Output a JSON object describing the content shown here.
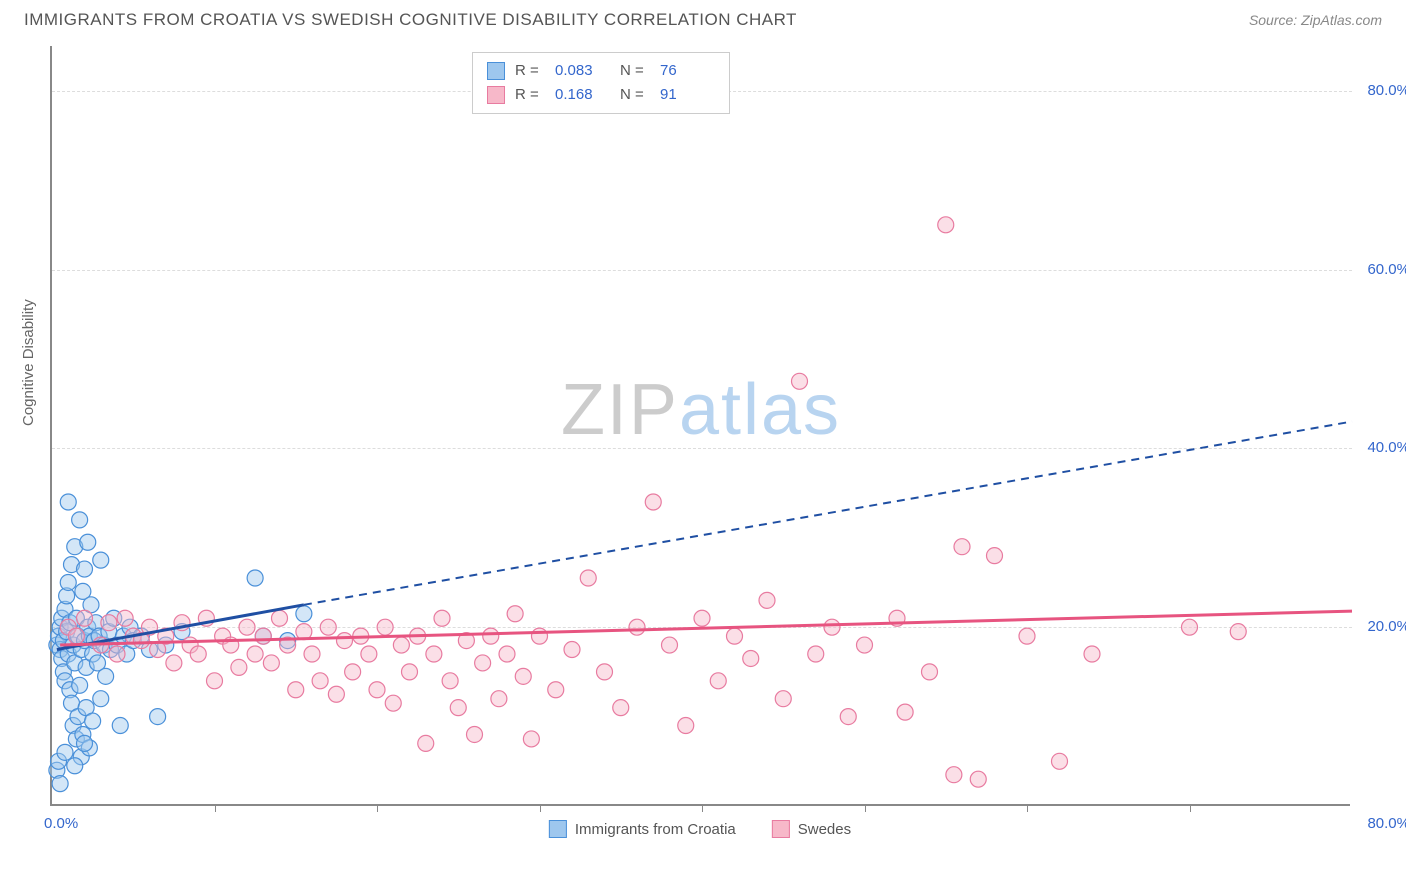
{
  "title": "IMMIGRANTS FROM CROATIA VS SWEDISH COGNITIVE DISABILITY CORRELATION CHART",
  "source": "Source: ZipAtlas.com",
  "ylabel": "Cognitive Disability",
  "watermark_a": "ZIP",
  "watermark_b": "atlas",
  "chart": {
    "type": "scatter",
    "xlim": [
      0,
      80
    ],
    "ylim": [
      0,
      85
    ],
    "x_tick_step": 10,
    "y_ticks": [
      20,
      40,
      60,
      80
    ],
    "x_label_min": "0.0%",
    "x_label_max": "80.0%",
    "y_labels": [
      "20.0%",
      "40.0%",
      "60.0%",
      "80.0%"
    ],
    "background_color": "#ffffff",
    "grid_color": "#dddddd",
    "axis_color": "#888888",
    "tick_label_color": "#3366cc",
    "marker_radius": 8,
    "series": [
      {
        "name": "Immigrants from Croatia",
        "fill": "#9ec7ee",
        "stroke": "#4a90d9",
        "r_value": "0.083",
        "n_value": "76",
        "trend_color": "#1f4fa3",
        "trend_solid": [
          [
            0.3,
            17.5
          ],
          [
            15.5,
            22.5
          ]
        ],
        "trend_dash": [
          [
            15.5,
            22.5
          ],
          [
            80,
            43
          ]
        ],
        "points": [
          [
            0.3,
            18.0
          ],
          [
            0.4,
            19.0
          ],
          [
            0.5,
            17.5
          ],
          [
            0.5,
            20.0
          ],
          [
            0.6,
            16.5
          ],
          [
            0.6,
            21.0
          ],
          [
            0.7,
            18.5
          ],
          [
            0.7,
            15.0
          ],
          [
            0.8,
            22.0
          ],
          [
            0.8,
            14.0
          ],
          [
            0.9,
            19.5
          ],
          [
            0.9,
            23.5
          ],
          [
            1.0,
            17.0
          ],
          [
            1.0,
            25.0
          ],
          [
            1.1,
            13.0
          ],
          [
            1.1,
            20.5
          ],
          [
            1.2,
            27.0
          ],
          [
            1.2,
            11.5
          ],
          [
            1.3,
            18.0
          ],
          [
            1.3,
            9.0
          ],
          [
            1.4,
            29.0
          ],
          [
            1.4,
            16.0
          ],
          [
            1.5,
            7.5
          ],
          [
            1.5,
            21.0
          ],
          [
            1.6,
            10.0
          ],
          [
            1.6,
            19.0
          ],
          [
            1.7,
            32.0
          ],
          [
            1.7,
            13.5
          ],
          [
            1.8,
            5.5
          ],
          [
            1.8,
            17.5
          ],
          [
            1.9,
            8.0
          ],
          [
            1.9,
            24.0
          ],
          [
            2.0,
            18.5
          ],
          [
            2.0,
            26.5
          ],
          [
            2.1,
            15.5
          ],
          [
            2.1,
            11.0
          ],
          [
            2.2,
            20.0
          ],
          [
            2.3,
            6.5
          ],
          [
            2.3,
            19.0
          ],
          [
            2.4,
            22.5
          ],
          [
            2.5,
            17.0
          ],
          [
            2.5,
            9.5
          ],
          [
            2.6,
            18.5
          ],
          [
            2.7,
            20.5
          ],
          [
            2.8,
            16.0
          ],
          [
            2.9,
            19.0
          ],
          [
            3.0,
            27.5
          ],
          [
            3.0,
            12.0
          ],
          [
            3.2,
            18.0
          ],
          [
            3.3,
            14.5
          ],
          [
            3.5,
            19.5
          ],
          [
            3.6,
            17.5
          ],
          [
            3.8,
            21.0
          ],
          [
            4.0,
            18.0
          ],
          [
            4.2,
            9.0
          ],
          [
            4.4,
            19.0
          ],
          [
            4.6,
            17.0
          ],
          [
            4.8,
            20.0
          ],
          [
            5.0,
            18.5
          ],
          [
            5.5,
            19.0
          ],
          [
            6.0,
            17.5
          ],
          [
            6.5,
            10.0
          ],
          [
            7.0,
            18.0
          ],
          [
            8.0,
            19.5
          ],
          [
            1.0,
            34.0
          ],
          [
            2.2,
            29.5
          ],
          [
            0.3,
            4.0
          ],
          [
            0.4,
            5.0
          ],
          [
            0.8,
            6.0
          ],
          [
            0.5,
            2.5
          ],
          [
            1.4,
            4.5
          ],
          [
            2.0,
            7.0
          ],
          [
            12.5,
            25.5
          ],
          [
            13.0,
            19.0
          ],
          [
            14.5,
            18.5
          ],
          [
            15.5,
            21.5
          ]
        ]
      },
      {
        "name": "Swedes",
        "fill": "#f7b8c9",
        "stroke": "#e87ba0",
        "r_value": "0.168",
        "n_value": "91",
        "trend_color": "#e75480",
        "trend_solid": [
          [
            0.5,
            18.0
          ],
          [
            80,
            21.8
          ]
        ],
        "trend_dash": null,
        "points": [
          [
            1.0,
            20.0
          ],
          [
            1.5,
            19.0
          ],
          [
            2.0,
            21.0
          ],
          [
            3.0,
            18.0
          ],
          [
            3.5,
            20.5
          ],
          [
            4.0,
            17.0
          ],
          [
            4.5,
            21.0
          ],
          [
            5.0,
            19.0
          ],
          [
            5.5,
            18.5
          ],
          [
            6.0,
            20.0
          ],
          [
            6.5,
            17.5
          ],
          [
            7.0,
            19.0
          ],
          [
            7.5,
            16.0
          ],
          [
            8.0,
            20.5
          ],
          [
            8.5,
            18.0
          ],
          [
            9.0,
            17.0
          ],
          [
            9.5,
            21.0
          ],
          [
            10.0,
            14.0
          ],
          [
            10.5,
            19.0
          ],
          [
            11.0,
            18.0
          ],
          [
            11.5,
            15.5
          ],
          [
            12.0,
            20.0
          ],
          [
            12.5,
            17.0
          ],
          [
            13.0,
            19.0
          ],
          [
            13.5,
            16.0
          ],
          [
            14.0,
            21.0
          ],
          [
            14.5,
            18.0
          ],
          [
            15.0,
            13.0
          ],
          [
            15.5,
            19.5
          ],
          [
            16.0,
            17.0
          ],
          [
            16.5,
            14.0
          ],
          [
            17.0,
            20.0
          ],
          [
            17.5,
            12.5
          ],
          [
            18.0,
            18.5
          ],
          [
            18.5,
            15.0
          ],
          [
            19.0,
            19.0
          ],
          [
            19.5,
            17.0
          ],
          [
            20.0,
            13.0
          ],
          [
            20.5,
            20.0
          ],
          [
            21.0,
            11.5
          ],
          [
            21.5,
            18.0
          ],
          [
            22.0,
            15.0
          ],
          [
            22.5,
            19.0
          ],
          [
            23.0,
            7.0
          ],
          [
            23.5,
            17.0
          ],
          [
            24.0,
            21.0
          ],
          [
            24.5,
            14.0
          ],
          [
            25.0,
            11.0
          ],
          [
            25.5,
            18.5
          ],
          [
            26.0,
            8.0
          ],
          [
            26.5,
            16.0
          ],
          [
            27.0,
            19.0
          ],
          [
            27.5,
            12.0
          ],
          [
            28.0,
            17.0
          ],
          [
            28.5,
            21.5
          ],
          [
            29.0,
            14.5
          ],
          [
            29.5,
            7.5
          ],
          [
            30.0,
            19.0
          ],
          [
            31.0,
            13.0
          ],
          [
            32.0,
            17.5
          ],
          [
            33.0,
            25.5
          ],
          [
            34.0,
            15.0
          ],
          [
            35.0,
            11.0
          ],
          [
            36.0,
            20.0
          ],
          [
            37.0,
            34.0
          ],
          [
            38.0,
            18.0
          ],
          [
            39.0,
            9.0
          ],
          [
            40.0,
            21.0
          ],
          [
            41.0,
            14.0
          ],
          [
            42.0,
            19.0
          ],
          [
            43.0,
            16.5
          ],
          [
            44.0,
            23.0
          ],
          [
            45.0,
            12.0
          ],
          [
            46.0,
            47.5
          ],
          [
            47.0,
            17.0
          ],
          [
            48.0,
            20.0
          ],
          [
            49.0,
            10.0
          ],
          [
            50.0,
            18.0
          ],
          [
            52.0,
            21.0
          ],
          [
            54.0,
            15.0
          ],
          [
            55.0,
            65.0
          ],
          [
            56.0,
            29.0
          ],
          [
            58.0,
            28.0
          ],
          [
            60.0,
            19.0
          ],
          [
            62.0,
            5.0
          ],
          [
            64.0,
            17.0
          ],
          [
            55.5,
            3.5
          ],
          [
            57.0,
            3.0
          ],
          [
            52.5,
            10.5
          ],
          [
            70.0,
            20.0
          ],
          [
            73.0,
            19.5
          ]
        ]
      }
    ]
  },
  "legend_bottom": [
    {
      "label": "Immigrants from Croatia",
      "fill": "#9ec7ee",
      "stroke": "#4a90d9"
    },
    {
      "label": "Swedes",
      "fill": "#f7b8c9",
      "stroke": "#e87ba0"
    }
  ]
}
